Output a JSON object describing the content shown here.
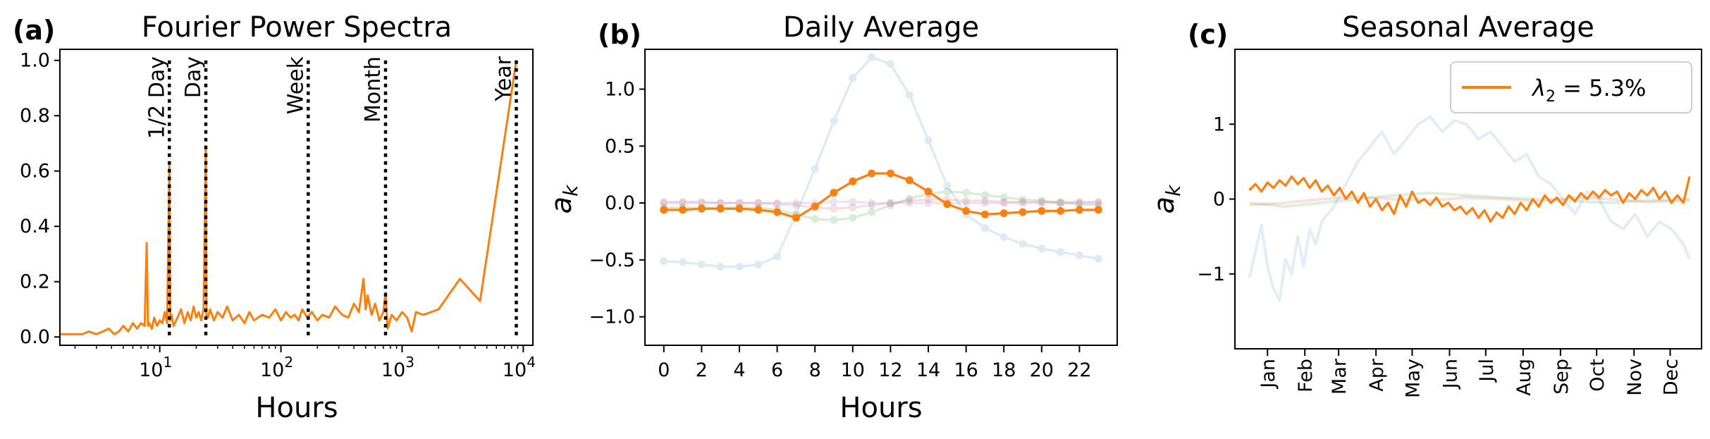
{
  "chart_data": [
    {
      "type": "line",
      "panel_label": "(a)",
      "title": "Fourier Power Spectra",
      "xlabel": "Hours",
      "ylabel": "",
      "xscale": "log",
      "xlim": [
        1.5,
        12000
      ],
      "ylim": [
        -0.03,
        1.04
      ],
      "xticks": [
        10,
        100,
        1000,
        10000
      ],
      "xtick_labels": [
        "10^1",
        "10^2",
        "10^3",
        "10^4"
      ],
      "yticks": [
        0.0,
        0.2,
        0.4,
        0.6,
        0.8,
        1.0
      ],
      "ytick_labels": [
        "0.0",
        "0.2",
        "0.4",
        "0.6",
        "0.8",
        "1.0"
      ],
      "series": [
        {
          "color": "#ff7f0e",
          "x": [
            1.5,
            2.0,
            2.3,
            2.6,
            3.0,
            3.4,
            3.8,
            4.2,
            4.6,
            5.0,
            5.5,
            6.0,
            6.5,
            7.0,
            7.5,
            7.8,
            8.0,
            8.2,
            8.6,
            9.0,
            9.5,
            10,
            10.5,
            11,
            11.5,
            12,
            12.2,
            12.5,
            13,
            14,
            15,
            16,
            17,
            18,
            19,
            20,
            21,
            22,
            23,
            24,
            24.3,
            25,
            26,
            28,
            30,
            33,
            36,
            40,
            45,
            50,
            55,
            60,
            70,
            80,
            90,
            100,
            110,
            120,
            130,
            140,
            150,
            165,
            180,
            200,
            220,
            250,
            280,
            320,
            360,
            400,
            440,
            480,
            500,
            520,
            560,
            600,
            650,
            700,
            730,
            760,
            820,
            900,
            1000,
            1100,
            1200,
            1300,
            1500,
            2000,
            3000,
            4400,
            8760
          ],
          "y": [
            0.01,
            0.01,
            0.01,
            0.02,
            0.01,
            0.02,
            0.03,
            0.01,
            0.02,
            0.04,
            0.02,
            0.05,
            0.03,
            0.05,
            0.04,
            0.34,
            0.04,
            0.05,
            0.03,
            0.07,
            0.04,
            0.06,
            0.05,
            0.09,
            0.05,
            0.62,
            0.06,
            0.08,
            0.04,
            0.07,
            0.1,
            0.05,
            0.09,
            0.06,
            0.11,
            0.07,
            0.09,
            0.06,
            0.1,
            0.69,
            0.08,
            0.07,
            0.1,
            0.06,
            0.09,
            0.07,
            0.11,
            0.06,
            0.08,
            0.05,
            0.09,
            0.06,
            0.08,
            0.07,
            0.1,
            0.06,
            0.09,
            0.07,
            0.08,
            0.06,
            0.1,
            0.07,
            0.09,
            0.06,
            0.08,
            0.07,
            0.11,
            0.08,
            0.07,
            0.12,
            0.09,
            0.21,
            0.1,
            0.15,
            0.08,
            0.12,
            0.06,
            0.09,
            0.16,
            0.03,
            0.08,
            0.06,
            0.09,
            0.07,
            0.02,
            0.09,
            0.08,
            0.1,
            0.21,
            0.13,
            1.0
          ]
        }
      ],
      "vlines": [
        {
          "x": 12,
          "label": "1/2 Day"
        },
        {
          "x": 24,
          "label": "Day"
        },
        {
          "x": 168,
          "label": "Week"
        },
        {
          "x": 730,
          "label": "Month"
        },
        {
          "x": 8760,
          "label": "Year"
        }
      ]
    },
    {
      "type": "line",
      "panel_label": "(b)",
      "title": "Daily Average",
      "xlabel": "Hours",
      "ylabel": "a_k",
      "ylabel_main": "a",
      "ylabel_sub": "k",
      "xlim": [
        -1,
        24
      ],
      "ylim": [
        -1.25,
        1.35
      ],
      "xticks": [
        0,
        2,
        4,
        6,
        8,
        10,
        12,
        14,
        16,
        18,
        20,
        22
      ],
      "xtick_labels": [
        "0",
        "2",
        "4",
        "6",
        "8",
        "10",
        "12",
        "14",
        "16",
        "18",
        "20",
        "22"
      ],
      "yticks": [
        -1.0,
        -0.5,
        0.0,
        0.5,
        1.0
      ],
      "ytick_labels": [
        "−1.0",
        "−0.5",
        "0.0",
        "0.5",
        "1.0"
      ],
      "x": [
        0,
        1,
        2,
        3,
        4,
        5,
        6,
        7,
        8,
        9,
        10,
        11,
        12,
        13,
        14,
        15,
        16,
        17,
        18,
        19,
        20,
        21,
        22,
        23
      ],
      "series": [
        {
          "color": "#1f77b4",
          "opacity": 0.15,
          "values": [
            -0.51,
            -0.52,
            -0.54,
            -0.56,
            -0.56,
            -0.54,
            -0.47,
            -0.1,
            0.3,
            0.72,
            1.1,
            1.28,
            1.22,
            0.95,
            0.55,
            0.15,
            -0.1,
            -0.22,
            -0.3,
            -0.36,
            -0.4,
            -0.43,
            -0.46,
            -0.49
          ]
        },
        {
          "color": "#2ca02c",
          "opacity": 0.18,
          "values": [
            -0.04,
            -0.04,
            -0.04,
            -0.04,
            -0.04,
            -0.04,
            -0.06,
            -0.1,
            -0.14,
            -0.15,
            -0.13,
            -0.08,
            -0.02,
            0.04,
            0.08,
            0.1,
            0.09,
            0.07,
            0.05,
            0.03,
            0.02,
            0.0,
            -0.01,
            -0.02
          ]
        },
        {
          "color": "#d62728",
          "opacity": 0.15,
          "values": [
            0.01,
            0.01,
            0.01,
            0.0,
            0.0,
            0.0,
            -0.01,
            -0.02,
            -0.04,
            -0.05,
            -0.04,
            -0.02,
            0.0,
            0.02,
            0.03,
            0.03,
            0.02,
            0.02,
            0.01,
            0.01,
            0.01,
            0.01,
            0.01,
            0.01
          ]
        },
        {
          "color": "#9467bd",
          "opacity": 0.18,
          "values": [
            0.0,
            0.0,
            0.0,
            0.0,
            0.0,
            0.0,
            0.0,
            0.0,
            0.0,
            0.01,
            0.01,
            0.0,
            0.0,
            0.0,
            0.0,
            0.0,
            0.0,
            0.0,
            0.0,
            0.0,
            0.0,
            0.0,
            0.0,
            0.0
          ]
        },
        {
          "color": "#ff7f0e",
          "opacity": 1.0,
          "values": [
            -0.06,
            -0.06,
            -0.05,
            -0.05,
            -0.05,
            -0.06,
            -0.08,
            -0.13,
            -0.03,
            0.09,
            0.19,
            0.26,
            0.26,
            0.2,
            0.1,
            -0.01,
            -0.07,
            -0.1,
            -0.09,
            -0.08,
            -0.07,
            -0.07,
            -0.06,
            -0.06
          ]
        }
      ]
    },
    {
      "type": "line",
      "panel_label": "(c)",
      "title": "Seasonal Average",
      "xlabel": "",
      "ylabel": "a_k",
      "ylabel_main": "a",
      "ylabel_sub": "k",
      "xlim": [
        -12,
        375
      ],
      "ylim": [
        -2.0,
        2.0
      ],
      "yticks": [
        -1,
        0,
        1
      ],
      "ytick_labels": [
        "−1",
        "0",
        "1"
      ],
      "month_ticks": [
        15,
        46,
        74,
        105,
        135,
        166,
        196,
        227,
        258,
        288,
        319,
        349
      ],
      "month_labels": [
        "Jan",
        "Feb",
        "Mar",
        "Apr",
        "May",
        "Jun",
        "Jul",
        "Aug",
        "Sep",
        "Oct",
        "Nov",
        "Dec"
      ],
      "legend": {
        "symbol": "λ",
        "sub": "2",
        "text": " = 5.3%",
        "position": "upper right",
        "color": "#ff7f0e"
      },
      "series": [
        {
          "color": "#1f77b4",
          "opacity": 0.13,
          "x": [
            0,
            5,
            10,
            15,
            20,
            25,
            30,
            35,
            40,
            45,
            50,
            55,
            60,
            70,
            80,
            90,
            100,
            110,
            120,
            130,
            140,
            150,
            160,
            170,
            180,
            190,
            200,
            210,
            220,
            230,
            240,
            250,
            260,
            270,
            280,
            290,
            300,
            310,
            320,
            330,
            340,
            350,
            360,
            365
          ],
          "values": [
            -1.05,
            -0.7,
            -0.35,
            -0.9,
            -1.2,
            -1.35,
            -0.8,
            -1.0,
            -0.5,
            -0.9,
            -0.4,
            -0.6,
            -0.3,
            -0.1,
            0.2,
            0.5,
            0.7,
            0.9,
            0.6,
            0.8,
            1.0,
            1.1,
            0.9,
            1.05,
            1.0,
            0.8,
            0.9,
            0.7,
            0.5,
            0.6,
            0.3,
            0.2,
            0.0,
            -0.2,
            0.1,
            0.0,
            -0.3,
            -0.4,
            -0.2,
            -0.5,
            -0.3,
            -0.4,
            -0.6,
            -0.8
          ]
        },
        {
          "color": "#2ca02c",
          "opacity": 0.16,
          "x": [
            0,
            30,
            60,
            90,
            120,
            150,
            180,
            210,
            240,
            270,
            300,
            330,
            365
          ],
          "values": [
            -0.05,
            -0.1,
            -0.05,
            0.0,
            0.05,
            0.08,
            0.05,
            0.02,
            0.0,
            -0.03,
            -0.05,
            -0.02,
            0.0
          ]
        },
        {
          "color": "#d62728",
          "opacity": 0.14,
          "x": [
            0,
            30,
            60,
            90,
            120,
            150,
            180,
            210,
            240,
            270,
            300,
            330,
            365
          ],
          "values": [
            -0.08,
            -0.05,
            0.0,
            0.03,
            0.0,
            -0.02,
            0.02,
            0.0,
            -0.03,
            0.02,
            0.0,
            -0.04,
            -0.02
          ]
        },
        {
          "color": "#ff7f0e",
          "opacity": 1.0,
          "x": [
            0,
            5,
            10,
            15,
            20,
            25,
            30,
            35,
            40,
            45,
            50,
            55,
            60,
            65,
            70,
            75,
            80,
            85,
            90,
            95,
            100,
            105,
            110,
            115,
            120,
            125,
            130,
            135,
            140,
            145,
            150,
            155,
            160,
            165,
            170,
            175,
            180,
            185,
            190,
            195,
            200,
            205,
            210,
            215,
            220,
            225,
            230,
            235,
            240,
            245,
            250,
            255,
            260,
            265,
            270,
            275,
            280,
            285,
            290,
            295,
            300,
            305,
            310,
            315,
            320,
            325,
            330,
            335,
            340,
            345,
            350,
            355,
            360,
            365
          ],
          "values": [
            0.12,
            0.2,
            0.1,
            0.22,
            0.15,
            0.25,
            0.18,
            0.3,
            0.2,
            0.28,
            0.15,
            0.25,
            0.1,
            0.18,
            0.05,
            0.15,
            0.0,
            0.1,
            -0.05,
            0.08,
            -0.1,
            0.0,
            -0.15,
            -0.05,
            -0.2,
            0.05,
            -0.1,
            0.1,
            -0.05,
            0.0,
            -0.08,
            0.02,
            -0.1,
            -0.05,
            -0.15,
            -0.1,
            -0.2,
            -0.12,
            -0.25,
            -0.15,
            -0.3,
            -0.18,
            -0.25,
            -0.1,
            -0.2,
            -0.05,
            -0.15,
            0.0,
            -0.1,
            0.05,
            -0.05,
            0.02,
            -0.08,
            0.05,
            -0.03,
            0.08,
            0.0,
            0.1,
            0.02,
            0.12,
            0.05,
            0.1,
            -0.05,
            0.08,
            0.0,
            0.12,
            0.05,
            0.15,
            0.0,
            0.1,
            -0.05,
            0.05,
            -0.05,
            0.3
          ]
        }
      ]
    }
  ]
}
